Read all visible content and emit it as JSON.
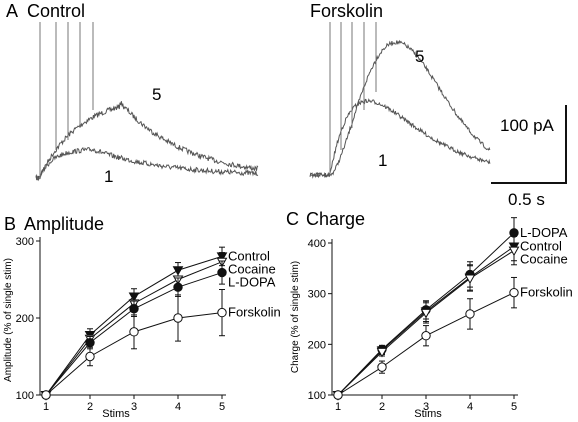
{
  "panels": {
    "a": {
      "letter": "A",
      "left_title": "Control",
      "right_title": "Forskolin",
      "trace_labels": {
        "five": "5",
        "one": "1"
      },
      "scalebar": {
        "amplitude": "100 pA",
        "time": "0.5 s"
      }
    }
  },
  "chart_data": [
    {
      "type": "line",
      "letter": "B",
      "title": "Amplitude",
      "xlabel": "Stims",
      "ylabel": "Amplitude (% of  single stim)",
      "x": [
        1,
        2,
        3,
        4,
        5
      ],
      "xlim": [
        1,
        5
      ],
      "ylim": [
        100,
        300
      ],
      "yticks": [
        100,
        200,
        300
      ],
      "grid": false,
      "legend": "labels at line ends (right)",
      "series": [
        {
          "name": "Control",
          "marker": "triangle-down-filled",
          "values": [
            100,
            178,
            228,
            262,
            280
          ],
          "err": [
            0,
            8,
            10,
            10,
            12
          ]
        },
        {
          "name": "Cocaine",
          "marker": "triangle-down-open",
          "values": [
            100,
            173,
            219,
            250,
            273
          ],
          "err": [
            0,
            8,
            10,
            12,
            12
          ]
        },
        {
          "name": "L-DOPA",
          "marker": "circle-filled",
          "values": [
            100,
            168,
            212,
            240,
            259
          ],
          "err": [
            0,
            8,
            10,
            12,
            15
          ]
        },
        {
          "name": "Forskolin",
          "marker": "circle-open",
          "values": [
            100,
            150,
            182,
            200,
            207
          ],
          "err": [
            0,
            12,
            22,
            30,
            30
          ]
        }
      ]
    },
    {
      "type": "line",
      "letter": "C",
      "title": "Charge",
      "xlabel": "Stims",
      "ylabel": "Charge (% of single stim)",
      "x": [
        1,
        2,
        3,
        4,
        5
      ],
      "xlim": [
        1,
        5
      ],
      "ylim": [
        100,
        400
      ],
      "yticks": [
        100,
        200,
        300,
        400
      ],
      "grid": false,
      "legend": "labels at line ends (right)",
      "series": [
        {
          "name": "L-DOPA",
          "marker": "circle-filled",
          "values": [
            100,
            190,
            268,
            338,
            420
          ],
          "err": [
            0,
            8,
            18,
            25,
            30
          ]
        },
        {
          "name": "Control",
          "marker": "triangle-down-filled",
          "values": [
            100,
            188,
            265,
            332,
            393
          ],
          "err": [
            0,
            8,
            20,
            25,
            28
          ]
        },
        {
          "name": "Cocaine",
          "marker": "triangle-down-open",
          "values": [
            100,
            185,
            262,
            330,
            385
          ],
          "err": [
            0,
            8,
            20,
            25,
            28
          ]
        },
        {
          "name": "Forskolin",
          "marker": "circle-open",
          "values": [
            100,
            155,
            217,
            260,
            302
          ],
          "err": [
            0,
            12,
            20,
            30,
            30
          ]
        }
      ]
    }
  ]
}
